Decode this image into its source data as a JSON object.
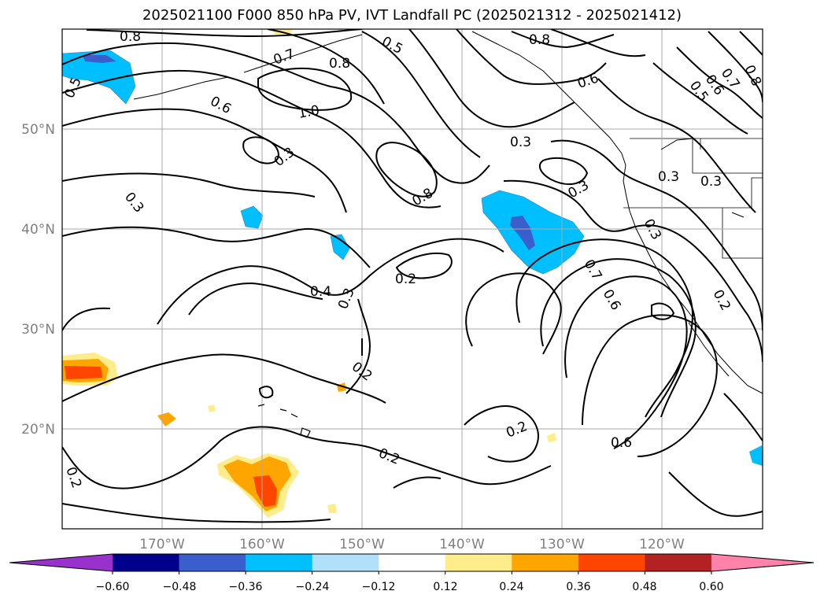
{
  "title": "2025021100 F000 850 hPa PV, IVT Landfall PC (2025021312 - 2025021412)",
  "lat_labels": [
    "50°N",
    "40°N",
    "30°N",
    "20°N"
  ],
  "lon_labels": [
    "170°W",
    "160°W",
    "150°W",
    "140°W",
    "130°W",
    "120°W"
  ],
  "contour_labels": [
    "0.8",
    "0.5",
    "0.8",
    "0.7",
    "0.8",
    "0.5",
    "0.6",
    "0.5",
    "0.6",
    "0.7",
    "0.8",
    "0.6",
    "1.0",
    "0.3",
    "0.3",
    "0.8",
    "0.3",
    "0.3",
    "0.3",
    "0.3",
    "0.3",
    "0.2",
    "0.4",
    "0.3",
    "0.7",
    "0.6",
    "0.2",
    "0.2",
    "0.2",
    "0.6",
    "0.2",
    "0.2"
  ],
  "colorbar": {
    "ticks": [
      "−0.60",
      "−0.48",
      "−0.36",
      "−0.24",
      "−0.12",
      "0.12",
      "0.24",
      "0.36",
      "0.48",
      "0.60"
    ],
    "colors": [
      "#9932cc",
      "#00008b",
      "#3a5fcd",
      "#00bfff",
      "#b0e0fa",
      "#ffffff",
      "#ffec8b",
      "#ffa500",
      "#ff4500",
      "#b22222",
      "#ff82ab"
    ]
  }
}
